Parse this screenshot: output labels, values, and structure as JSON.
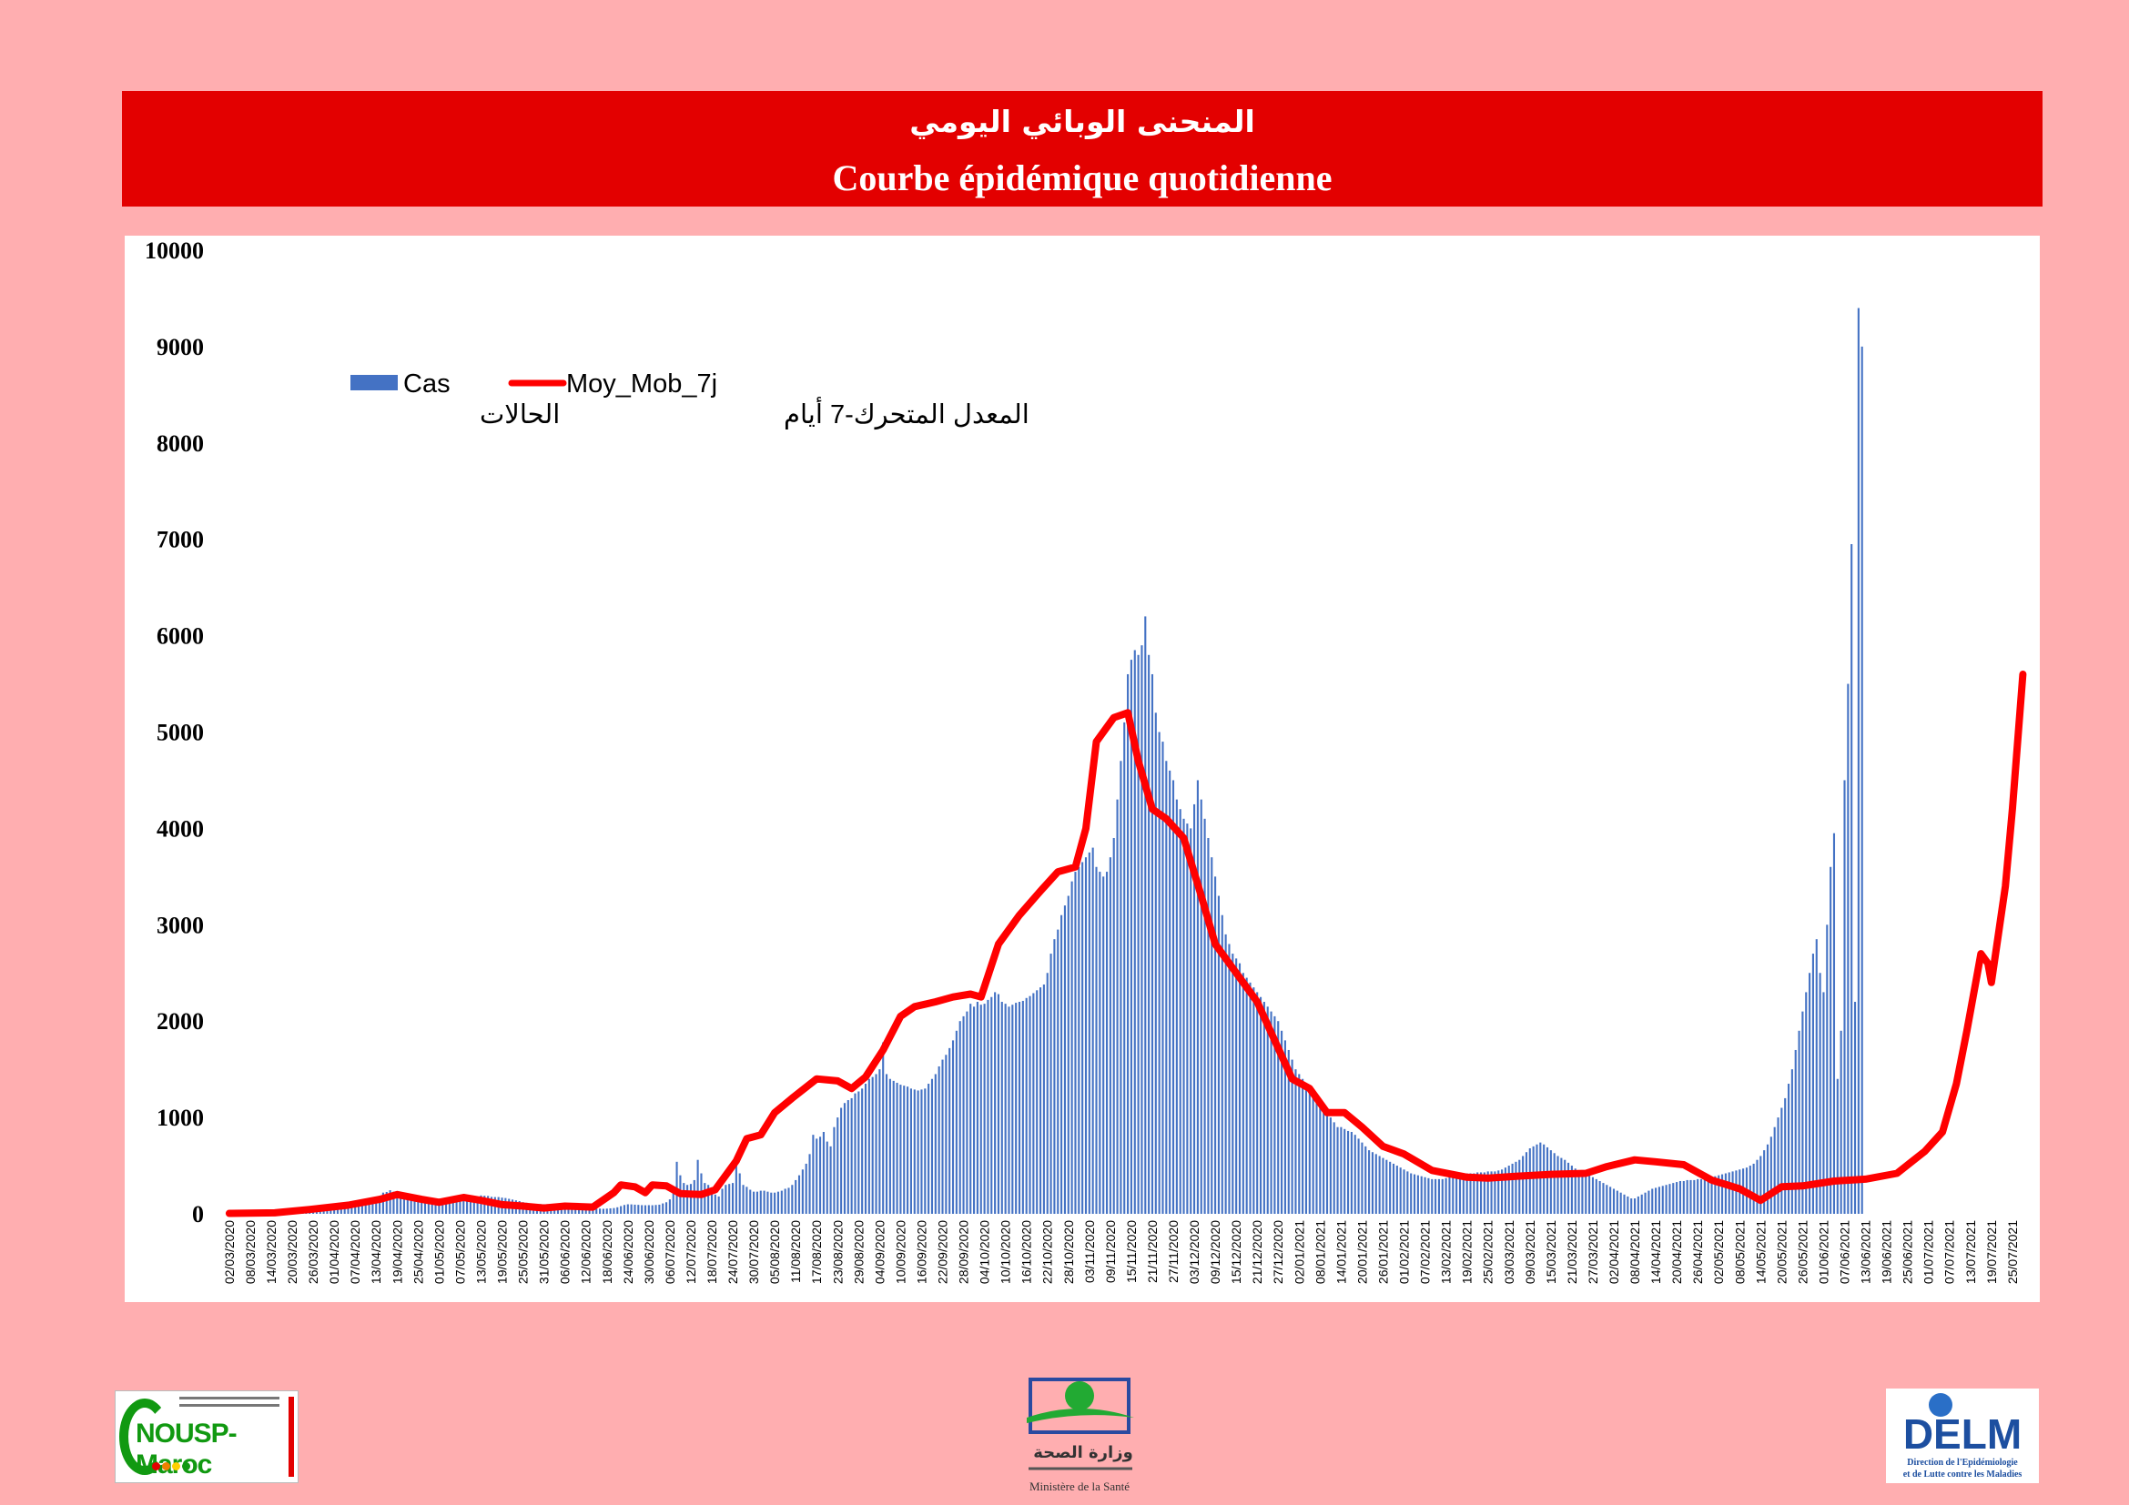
{
  "header": {
    "title_ar": "المنحنى الوبائي اليومي",
    "title_fr": "Courbe épidémique quotidienne"
  },
  "colors": {
    "page_background": "#ffaeb0",
    "header_background": "#e30000",
    "bars": "#4472c4",
    "moving_average": "#ff0000"
  },
  "logos": {
    "left": {
      "text": "NOUSP-Maroc",
      "icon": "nousp-logo"
    },
    "center": {
      "text_ar": "وزارة الصحة",
      "text_fr": "Ministère de la Santé",
      "icon": "ministry-of-health-logo"
    },
    "right": {
      "text": "DELM",
      "subtitle": "Direction de l'Epidémiologie et de Lutte contre les Maladies",
      "icon": "delm-logo"
    }
  },
  "chart_data": {
    "type": "bar",
    "title": "",
    "xlabel": "",
    "ylabel": "",
    "ylim": [
      0,
      10000
    ],
    "yticks": [
      0,
      1000,
      2000,
      3000,
      4000,
      5000,
      6000,
      7000,
      8000,
      9000,
      10000
    ],
    "grid": false,
    "legend_position": "top-left",
    "x_range": [
      "02/03/2020",
      "30/07/2021"
    ],
    "x_tick_labels": [
      "02/03/2020",
      "08/03/2020",
      "14/03/2020",
      "20/03/2020",
      "26/03/2020",
      "01/04/2020",
      "07/04/2020",
      "13/04/2020",
      "19/04/2020",
      "25/04/2020",
      "01/05/2020",
      "07/05/2020",
      "13/05/2020",
      "19/05/2020",
      "25/05/2020",
      "31/05/2020",
      "06/06/2020",
      "12/06/2020",
      "18/06/2020",
      "24/06/2020",
      "30/06/2020",
      "06/07/2020",
      "12/07/2020",
      "18/07/2020",
      "24/07/2020",
      "30/07/2020",
      "05/08/2020",
      "11/08/2020",
      "17/08/2020",
      "23/08/2020",
      "29/08/2020",
      "04/09/2020",
      "10/09/2020",
      "16/09/2020",
      "22/09/2020",
      "28/09/2020",
      "04/10/2020",
      "10/10/2020",
      "16/10/2020",
      "22/10/2020",
      "28/10/2020",
      "03/11/2020",
      "09/11/2020",
      "15/11/2020",
      "21/11/2020",
      "27/11/2020",
      "03/12/2020",
      "09/12/2020",
      "15/12/2020",
      "21/12/2020",
      "27/12/2020",
      "02/01/2021",
      "08/01/2021",
      "14/01/2021",
      "20/01/2021",
      "26/01/2021",
      "01/02/2021",
      "07/02/2021",
      "13/02/2021",
      "19/02/2021",
      "25/02/2021",
      "03/03/2021",
      "09/03/2021",
      "15/03/2021",
      "21/03/2021",
      "27/03/2021",
      "02/04/2021",
      "08/04/2021",
      "14/04/2021",
      "20/04/2021",
      "26/04/2021",
      "02/05/2021",
      "08/05/2021",
      "14/05/2021",
      "20/05/2021",
      "26/05/2021",
      "01/06/2021",
      "07/06/2021",
      "13/06/2021",
      "19/06/2021",
      "25/06/2021",
      "01/07/2021",
      "07/07/2021",
      "13/07/2021",
      "19/07/2021",
      "25/07/2021"
    ],
    "series": [
      {
        "name": "Cas",
        "name_ar": "الحالات",
        "type": "bar",
        "note_values": "daily cases, one value per day from 02/03/2020",
        "values": [
          1,
          0,
          0,
          0,
          0,
          1,
          0,
          0,
          3,
          4,
          5,
          6,
          8,
          10,
          10,
          16,
          12,
          20,
          22,
          24,
          36,
          43,
          42,
          45,
          52,
          61,
          69,
          74,
          83,
          80,
          76,
          82,
          79,
          99,
          104,
          101,
          128,
          124,
          139,
          148,
          165,
          170,
          176,
          183,
          220,
          227,
          245,
          230,
          219,
          210,
          190,
          175,
          168,
          165,
          152,
          160,
          147,
          135,
          122,
          120,
          110,
          115,
          128,
          130,
          135,
          135,
          146,
          151,
          160,
          168,
          174,
          180,
          191,
          188,
          186,
          176,
          174,
          174,
          168,
          164,
          156,
          148,
          140,
          132,
          121,
          115,
          107,
          104,
          100,
          101,
          100,
          100,
          99,
          91,
          95,
          93,
          91,
          90,
          88,
          83,
          77,
          71,
          64,
          58,
          53,
          53,
          54,
          52,
          54,
          57,
          60,
          68,
          80,
          92,
          99,
          98,
          95,
          93,
          90,
          89,
          90,
          89,
          92,
          95,
          108,
          120,
          150,
          220,
          540,
          400,
          320,
          300,
          310,
          350,
          560,
          420,
          320,
          300,
          250,
          200,
          180,
          260,
          300,
          310,
          320,
          540,
          420,
          300,
          280,
          250,
          230,
          230,
          240,
          240,
          230,
          220,
          220,
          230,
          240,
          260,
          270,
          300,
          350,
          400,
          460,
          520,
          620,
          820,
          780,
          800,
          850,
          750,
          700,
          900,
          1000,
          1100,
          1150,
          1180,
          1200,
          1250,
          1270,
          1300,
          1350,
          1400,
          1420,
          1450,
          1500,
          1780,
          1450,
          1400,
          1380,
          1360,
          1340,
          1330,
          1320,
          1300,
          1290,
          1280,
          1290,
          1300,
          1350,
          1400,
          1450,
          1530,
          1600,
          1650,
          1720,
          1800,
          1900,
          2000,
          2050,
          2100,
          2180,
          2150,
          2200,
          2170,
          2180,
          2220,
          2250,
          2300,
          2280,
          2200,
          2180,
          2150,
          2170,
          2190,
          2200,
          2210,
          2240,
          2260,
          2290,
          2320,
          2350,
          2380,
          2500,
          2700,
          2850,
          2950,
          3100,
          3200,
          3300,
          3450,
          3550,
          3600,
          3650,
          3700,
          3750,
          3800,
          3600,
          3550,
          3500,
          3550,
          3700,
          3900,
          4300,
          4700,
          5100,
          5600,
          5750,
          5850,
          5800,
          5900,
          6200,
          5800,
          5600,
          5200,
          5000,
          4900,
          4700,
          4600,
          4500,
          4300,
          4200,
          4100,
          4050,
          4000,
          4250,
          4500,
          4300,
          4100,
          3900,
          3700,
          3500,
          3300,
          3100,
          2900,
          2800,
          2700,
          2650,
          2600,
          2500,
          2450,
          2400,
          2350,
          2300,
          2250,
          2200,
          2150,
          2100,
          2050,
          2000,
          1900,
          1800,
          1700,
          1600,
          1500,
          1450,
          1400,
          1350,
          1300,
          1250,
          1200,
          1150,
          1100,
          1050,
          1000,
          950,
          900,
          900,
          880,
          860,
          850,
          820,
          780,
          740,
          700,
          660,
          640,
          620,
          600,
          580,
          560,
          540,
          520,
          500,
          480,
          460,
          440,
          420,
          410,
          400,
          390,
          380,
          370,
          360,
          360,
          360,
          360,
          370,
          380,
          390,
          400,
          410,
          410,
          420,
          420,
          420,
          430,
          430,
          430,
          440,
          440,
          440,
          450,
          460,
          480,
          500,
          520,
          540,
          560,
          600,
          640,
          680,
          700,
          720,
          740,
          720,
          690,
          660,
          630,
          600,
          580,
          560,
          530,
          500,
          470,
          450,
          440,
          420,
          400,
          380,
          360,
          340,
          320,
          300,
          280,
          260,
          240,
          220,
          200,
          180,
          160,
          160,
          180,
          200,
          220,
          240,
          260,
          270,
          280,
          290,
          300,
          310,
          320,
          330,
          340,
          340,
          350,
          350,
          350,
          360,
          360,
          360,
          370,
          380,
          390,
          400,
          410,
          420,
          430,
          440,
          450,
          460,
          470,
          480,
          500,
          520,
          560,
          600,
          660,
          720,
          800,
          900,
          1000,
          1100,
          1200,
          1350,
          1500,
          1700,
          1900,
          2100,
          2300,
          2500,
          2700,
          2850,
          2500,
          2300,
          3000,
          3600,
          3950,
          1400,
          1900,
          4500,
          5500,
          6950,
          2200,
          9400,
          9000
        ]
      },
      {
        "name": "Moy_Mob_7j",
        "name_ar": "المعدل المتحرك-7 أيام",
        "type": "line",
        "points": [
          [
            "02/03/2020",
            5
          ],
          [
            "15/03/2020",
            10
          ],
          [
            "25/03/2020",
            45
          ],
          [
            "05/04/2020",
            90
          ],
          [
            "14/04/2020",
            150
          ],
          [
            "19/04/2020",
            200
          ],
          [
            "26/04/2020",
            150
          ],
          [
            "01/05/2020",
            120
          ],
          [
            "08/05/2020",
            170
          ],
          [
            "13/05/2020",
            140
          ],
          [
            "19/05/2020",
            95
          ],
          [
            "25/05/2020",
            80
          ],
          [
            "31/05/2020",
            60
          ],
          [
            "06/06/2020",
            80
          ],
          [
            "14/06/2020",
            70
          ],
          [
            "20/06/2020",
            220
          ],
          [
            "22/06/2020",
            300
          ],
          [
            "26/06/2020",
            280
          ],
          [
            "29/06/2020",
            220
          ],
          [
            "01/07/2020",
            300
          ],
          [
            "05/07/2020",
            290
          ],
          [
            "09/07/2020",
            210
          ],
          [
            "15/07/2020",
            200
          ],
          [
            "19/07/2020",
            250
          ],
          [
            "25/07/2020",
            550
          ],
          [
            "28/07/2020",
            780
          ],
          [
            "01/08/2020",
            820
          ],
          [
            "05/08/2020",
            1050
          ],
          [
            "10/08/2020",
            1200
          ],
          [
            "17/08/2020",
            1400
          ],
          [
            "23/08/2020",
            1380
          ],
          [
            "27/08/2020",
            1300
          ],
          [
            "31/08/2020",
            1420
          ],
          [
            "05/09/2020",
            1700
          ],
          [
            "10/09/2020",
            2050
          ],
          [
            "14/09/2020",
            2150
          ],
          [
            "20/09/2020",
            2200
          ],
          [
            "25/09/2020",
            2250
          ],
          [
            "30/09/2020",
            2280
          ],
          [
            "03/10/2020",
            2250
          ],
          [
            "08/10/2020",
            2800
          ],
          [
            "14/10/2020",
            3100
          ],
          [
            "20/10/2020",
            3350
          ],
          [
            "25/10/2020",
            3550
          ],
          [
            "30/10/2020",
            3600
          ],
          [
            "02/11/2020",
            4000
          ],
          [
            "05/11/2020",
            4900
          ],
          [
            "10/11/2020",
            5150
          ],
          [
            "14/11/2020",
            5200
          ],
          [
            "17/11/2020",
            4700
          ],
          [
            "21/11/2020",
            4200
          ],
          [
            "25/11/2020",
            4100
          ],
          [
            "30/11/2020",
            3900
          ],
          [
            "05/12/2020",
            3300
          ],
          [
            "09/12/2020",
            2800
          ],
          [
            "15/12/2020",
            2500
          ],
          [
            "21/12/2020",
            2200
          ],
          [
            "26/12/2020",
            1800
          ],
          [
            "31/12/2020",
            1400
          ],
          [
            "05/01/2021",
            1300
          ],
          [
            "10/01/2021",
            1050
          ],
          [
            "15/01/2021",
            1050
          ],
          [
            "20/01/2021",
            900
          ],
          [
            "26/01/2021",
            700
          ],
          [
            "01/02/2021",
            620
          ],
          [
            "09/02/2021",
            450
          ],
          [
            "19/02/2021",
            380
          ],
          [
            "25/02/2021",
            370
          ],
          [
            "05/03/2021",
            390
          ],
          [
            "15/03/2021",
            410
          ],
          [
            "25/03/2021",
            420
          ],
          [
            "31/03/2021",
            490
          ],
          [
            "08/04/2021",
            560
          ],
          [
            "14/04/2021",
            540
          ],
          [
            "22/04/2021",
            510
          ],
          [
            "30/04/2021",
            350
          ],
          [
            "08/05/2021",
            260
          ],
          [
            "14/05/2021",
            140
          ],
          [
            "20/05/2021",
            280
          ],
          [
            "26/05/2021",
            290
          ],
          [
            "04/06/2021",
            340
          ],
          [
            "13/06/2021",
            360
          ],
          [
            "22/06/2021",
            420
          ],
          [
            "30/06/2021",
            650
          ],
          [
            "05/07/2021",
            850
          ],
          [
            "09/07/2021",
            1350
          ],
          [
            "12/07/2021",
            1900
          ],
          [
            "15/07/2021",
            2500
          ],
          [
            "16/07/2021",
            2700
          ],
          [
            "18/07/2021",
            2600
          ],
          [
            "19/07/2021",
            2400
          ],
          [
            "21/07/2021",
            2900
          ],
          [
            "23/07/2021",
            3400
          ],
          [
            "25/07/2021",
            4200
          ],
          [
            "28/07/2021",
            5600
          ]
        ]
      }
    ]
  }
}
